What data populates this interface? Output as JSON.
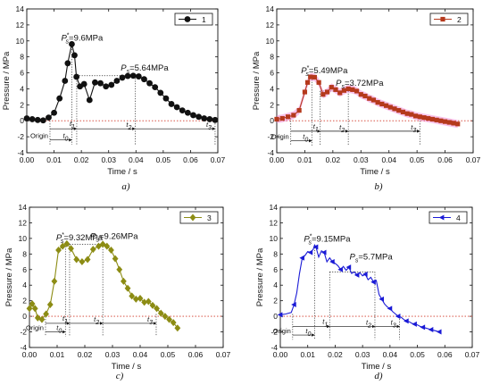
{
  "chart_data": [
    {
      "type": "line",
      "panel_label": "a)",
      "xlabel": "Time / s",
      "ylabel": "Pressure / MPa",
      "xlim": [
        0,
        0.07
      ],
      "ylim": [
        -4,
        14
      ],
      "xticks": [
        "0.00",
        "0.01",
        "0.02",
        "0.03",
        "0.04",
        "0.05",
        "0.06",
        "0.07"
      ],
      "yticks": [
        "-4",
        "-2",
        "0",
        "2",
        "4",
        "6",
        "8",
        "10",
        "12",
        "14"
      ],
      "color": "#111111",
      "marker": "circle",
      "legend_position": "top-right",
      "series": [
        {
          "name": "1",
          "x": [
            0.0,
            0.002,
            0.004,
            0.006,
            0.008,
            0.01,
            0.012,
            0.014,
            0.015,
            0.0165,
            0.0175,
            0.0182,
            0.0195,
            0.021,
            0.023,
            0.025,
            0.027,
            0.029,
            0.031,
            0.033,
            0.035,
            0.037,
            0.039,
            0.041,
            0.043,
            0.045,
            0.047,
            0.049,
            0.051,
            0.053,
            0.055,
            0.057,
            0.059,
            0.061,
            0.063,
            0.065,
            0.067,
            0.069
          ],
          "y": [
            0.3,
            0.2,
            0.1,
            0.05,
            0.4,
            1.0,
            2.8,
            5.0,
            7.2,
            9.6,
            8.2,
            5.5,
            4.3,
            4.6,
            2.6,
            4.8,
            4.7,
            4.3,
            4.5,
            5.0,
            5.4,
            5.6,
            5.64,
            5.55,
            5.2,
            4.7,
            4.2,
            3.5,
            2.8,
            2.1,
            1.7,
            1.3,
            1.0,
            0.7,
            0.5,
            0.3,
            0.2,
            0.1
          ]
        }
      ],
      "annotations": [
        {
          "label": "P",
          "sub": "s",
          "sup": "*",
          "value": "=9.6MPa",
          "x": 0.0165,
          "y": 9.6
        },
        {
          "label": "P",
          "sub": "s",
          "sup": "",
          "value": "=5.64MPa",
          "x": 0.039,
          "y": 5.64
        }
      ],
      "vlines": [
        0.0085,
        0.0165,
        0.0183,
        0.0397,
        0.069
      ],
      "marks": [
        {
          "text": "Origin"
        },
        {
          "text": "t",
          "sub": "0"
        },
        {
          "text": "t",
          "sub": "1"
        },
        {
          "text": "t",
          "sub": "2"
        },
        {
          "text": "t",
          "sub": "3"
        }
      ]
    },
    {
      "type": "line",
      "panel_label": "b)",
      "xlabel": "Time / s",
      "ylabel": "Pressure / MPa",
      "xlim": [
        0,
        0.07
      ],
      "ylim": [
        -4,
        14
      ],
      "xticks": [
        "0.00",
        "0.01",
        "0.02",
        "0.03",
        "0.04",
        "0.05",
        "0.06",
        "0.07"
      ],
      "yticks": [
        "-4",
        "-2",
        "0",
        "2",
        "4",
        "6",
        "8",
        "10",
        "12",
        "14"
      ],
      "color": "#b5391c",
      "band_color": "#f07ad3",
      "marker": "square",
      "legend_position": "top-right",
      "series": [
        {
          "name": "2",
          "x": [
            0.0,
            0.002,
            0.004,
            0.006,
            0.008,
            0.01,
            0.011,
            0.012,
            0.0135,
            0.015,
            0.0165,
            0.018,
            0.0195,
            0.021,
            0.0225,
            0.024,
            0.0255,
            0.027,
            0.0285,
            0.03,
            0.0315,
            0.033,
            0.0345,
            0.036,
            0.0375,
            0.039,
            0.0405,
            0.042,
            0.0435,
            0.045,
            0.0465,
            0.048,
            0.0495,
            0.051,
            0.0525,
            0.054,
            0.0555,
            0.057,
            0.0585,
            0.06,
            0.0615,
            0.063,
            0.0645
          ],
          "y": [
            0.2,
            0.3,
            0.5,
            0.7,
            1.3,
            3.6,
            4.8,
            5.49,
            5.45,
            4.8,
            3.3,
            3.6,
            4.2,
            3.9,
            3.5,
            3.8,
            4.0,
            3.9,
            3.72,
            3.3,
            3.1,
            2.8,
            2.6,
            2.3,
            2.1,
            1.9,
            1.7,
            1.5,
            1.3,
            1.1,
            0.9,
            0.8,
            0.6,
            0.5,
            0.4,
            0.3,
            0.2,
            0.1,
            0.0,
            -0.1,
            -0.2,
            -0.3,
            -0.4
          ]
        }
      ],
      "annotations": [
        {
          "label": "P",
          "sub": "s",
          "sup": "*",
          "value": "=5.49MPa",
          "x": 0.0125,
          "y": 5.49
        },
        {
          "label": "P",
          "sub": "s",
          "sup": "",
          "value": "=3.72MPa",
          "x": 0.0255,
          "y": 3.72
        }
      ],
      "vlines": [
        0.005,
        0.0125,
        0.0155,
        0.0255,
        0.051
      ],
      "marks": [
        {
          "text": "Origin"
        },
        {
          "text": "t",
          "sub": "0"
        },
        {
          "text": "t",
          "sub": "1"
        },
        {
          "text": "t",
          "sub": "2"
        },
        {
          "text": "t",
          "sub": "3"
        }
      ]
    },
    {
      "type": "line",
      "panel_label": "c)",
      "xlabel": "Time / s",
      "ylabel": "Pressure / MPa",
      "xlim": [
        0,
        0.07
      ],
      "ylim": [
        -4,
        14
      ],
      "xticks": [
        "0.00",
        "0.01",
        "0.02",
        "0.03",
        "0.04",
        "0.05",
        "0.06",
        "0.07"
      ],
      "yticks": [
        "-4",
        "-2",
        "0",
        "2",
        "4",
        "6",
        "8",
        "10",
        "12",
        "14"
      ],
      "color": "#8c8c14",
      "marker": "diamond",
      "legend_position": "top-right",
      "series": [
        {
          "name": "3",
          "x": [
            0.0,
            0.001,
            0.002,
            0.003,
            0.0045,
            0.006,
            0.0075,
            0.009,
            0.0105,
            0.012,
            0.0135,
            0.015,
            0.017,
            0.019,
            0.021,
            0.023,
            0.025,
            0.0265,
            0.028,
            0.0295,
            0.031,
            0.0325,
            0.034,
            0.0355,
            0.037,
            0.0385,
            0.04,
            0.0415,
            0.043,
            0.0445,
            0.046,
            0.0475,
            0.049,
            0.0505,
            0.052,
            0.0535
          ],
          "y": [
            1.0,
            1.6,
            1.0,
            -0.2,
            -0.4,
            0.3,
            1.5,
            4.5,
            8.5,
            9.0,
            9.32,
            8.7,
            7.3,
            7.0,
            7.3,
            8.6,
            9.0,
            9.26,
            9.0,
            8.5,
            7.4,
            6.0,
            4.5,
            3.6,
            2.6,
            2.2,
            2.3,
            1.8,
            1.9,
            1.4,
            1.0,
            0.4,
            0.0,
            -0.4,
            -0.8,
            -1.5
          ]
        }
      ],
      "annotations": [
        {
          "label": "P",
          "sub": "s",
          "sup": "*",
          "value": "=9.32MPa",
          "x": 0.0135,
          "y": 9.32
        },
        {
          "label": "P",
          "sub": "s",
          "sup": "",
          "value": "=9.26MPa",
          "x": 0.0265,
          "y": 9.26
        }
      ],
      "vlines": [
        0.0058,
        0.013,
        0.0145,
        0.0265,
        0.0458
      ],
      "marks": [
        {
          "text": "Origin"
        },
        {
          "text": "t",
          "sub": "0"
        },
        {
          "text": "t",
          "sub": "1"
        },
        {
          "text": "t",
          "sub": "2"
        },
        {
          "text": "t",
          "sub": "3"
        }
      ]
    },
    {
      "type": "line",
      "panel_label": "d)",
      "xlabel": "Time / s",
      "ylabel": "Pressure / MPa",
      "xlim": [
        0,
        0.07
      ],
      "ylim": [
        -4,
        14
      ],
      "xticks": [
        "0.00",
        "0.01",
        "0.02",
        "0.03",
        "0.04",
        "0.05",
        "0.06",
        "0.07"
      ],
      "yticks": [
        "-4",
        "-2",
        "0",
        "2",
        "4",
        "6",
        "8",
        "10",
        "12",
        "14"
      ],
      "color": "#1a1ad6",
      "marker": "triangle-left",
      "legend_position": "top-right",
      "series": [
        {
          "name": "4",
          "x": [
            0.0,
            0.002,
            0.004,
            0.005,
            0.006,
            0.007,
            0.008,
            0.009,
            0.01,
            0.011,
            0.012,
            0.0125,
            0.013,
            0.014,
            0.015,
            0.016,
            0.017,
            0.018,
            0.019,
            0.02,
            0.021,
            0.022,
            0.023,
            0.024,
            0.025,
            0.026,
            0.027,
            0.028,
            0.029,
            0.03,
            0.031,
            0.032,
            0.033,
            0.034,
            0.035,
            0.036,
            0.037,
            0.038,
            0.039,
            0.04,
            0.041,
            0.042,
            0.043,
            0.044,
            0.045,
            0.046,
            0.047,
            0.048,
            0.049,
            0.05,
            0.051,
            0.052,
            0.053,
            0.054,
            0.055,
            0.056,
            0.057,
            0.058
          ],
          "y": [
            0.2,
            0.3,
            0.5,
            1.5,
            3.0,
            5.5,
            7.5,
            7.8,
            8.3,
            8.2,
            8.6,
            9.15,
            8.9,
            7.6,
            8.4,
            8.2,
            7.0,
            7.5,
            7.0,
            6.8,
            6.5,
            6.0,
            6.4,
            5.9,
            6.3,
            5.5,
            5.7,
            5.3,
            5.6,
            5.2,
            5.4,
            4.7,
            5.0,
            4.4,
            4.6,
            2.8,
            2.2,
            1.6,
            1.2,
            1.0,
            0.6,
            0.3,
            0.0,
            -0.1,
            -0.4,
            -0.6,
            -0.7,
            -0.9,
            -1.0,
            -1.1,
            -1.3,
            -1.4,
            -1.5,
            -1.6,
            -1.7,
            -1.8,
            -1.9,
            -2.0
          ]
        }
      ],
      "annotations": [
        {
          "label": "P",
          "sub": "s",
          "sup": "*",
          "value": "=9.15MPa",
          "x": 0.0125,
          "y": 9.15
        },
        {
          "label": "P",
          "sub": "s",
          "sup": "",
          "value": "=5.7MPa",
          "x": 0.035,
          "y": 5.7
        }
      ],
      "vlines": [
        0.0045,
        0.0125,
        0.018,
        0.0345,
        0.0435
      ],
      "marks": [
        {
          "text": "Origin"
        },
        {
          "text": "t",
          "sub": "0"
        },
        {
          "text": "t",
          "sub": "1"
        },
        {
          "text": "t",
          "sub": "2"
        },
        {
          "text": "t",
          "sub": "3"
        }
      ]
    }
  ]
}
